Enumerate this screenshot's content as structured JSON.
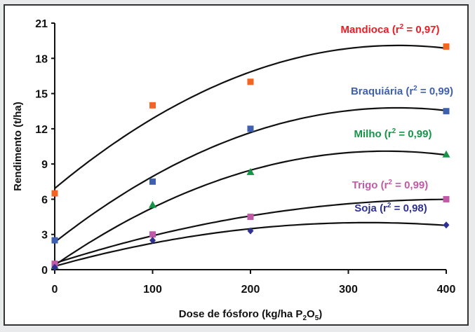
{
  "chart_data": {
    "type": "scatter",
    "xlabel": "Dose de fósforo (kg/ha P2O5)",
    "xlabel_parts": {
      "main": "Dose de fósforo (kg/ha P",
      "sub1": "2",
      "mid": "O",
      "sub2": "5",
      "end": ")"
    },
    "ylabel": "Rendimento (t/ha)",
    "xlim": [
      0,
      400
    ],
    "ylim": [
      0,
      21
    ],
    "xticks": [
      0,
      100,
      200,
      300,
      400
    ],
    "yticks": [
      0,
      3,
      6,
      9,
      12,
      15,
      18,
      21
    ],
    "grid": false,
    "trendline": "quadratic",
    "series": [
      {
        "name": "Mandioca",
        "r2": "0,97",
        "color": "#f26522",
        "label_color": "#ed1c24",
        "marker": "square",
        "x": [
          0,
          100,
          200,
          400
        ],
        "y": [
          6.5,
          14,
          16,
          19
        ]
      },
      {
        "name": "Braquiária",
        "r2": "0,99",
        "color": "#3f5fb0",
        "label_color": "#3f5fb0",
        "marker": "square",
        "x": [
          0,
          100,
          200,
          400
        ],
        "y": [
          2.5,
          7.5,
          12,
          13.5
        ]
      },
      {
        "name": "Milho",
        "r2": "0,99",
        "color": "#159447",
        "label_color": "#159447",
        "marker": "triangle",
        "x": [
          0,
          100,
          200,
          400
        ],
        "y": [
          0.3,
          5.5,
          8.3,
          9.8
        ]
      },
      {
        "name": "Trigo",
        "r2": "0,99",
        "color": "#c05aa6",
        "label_color": "#c05aa6",
        "marker": "square",
        "x": [
          0,
          100,
          200,
          400
        ],
        "y": [
          0.5,
          3.0,
          4.5,
          6.0
        ]
      },
      {
        "name": "Soja",
        "r2": "0,98",
        "color": "#2e3192",
        "label_color": "#2e3192",
        "marker": "diamond",
        "x": [
          0,
          100,
          200,
          400
        ],
        "y": [
          0.2,
          2.5,
          3.3,
          3.8
        ]
      }
    ]
  }
}
